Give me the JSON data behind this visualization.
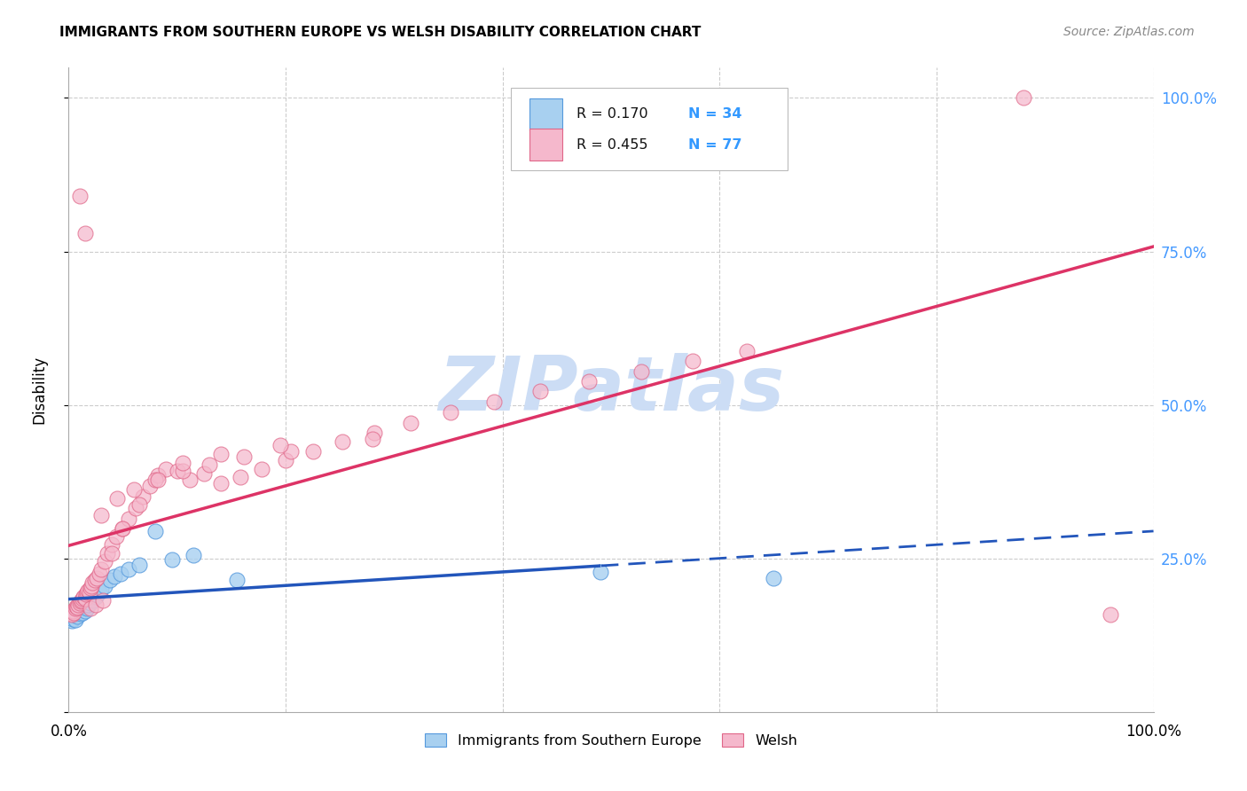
{
  "title": "IMMIGRANTS FROM SOUTHERN EUROPE VS WELSH DISABILITY CORRELATION CHART",
  "source": "Source: ZipAtlas.com",
  "ylabel": "Disability",
  "blue_label": "Immigrants from Southern Europe",
  "pink_label": "Welsh",
  "blue_r": "0.170",
  "blue_n": "34",
  "pink_r": "0.455",
  "pink_n": "77",
  "blue_dot_color": "#a8d0f0",
  "blue_edge_color": "#5599dd",
  "blue_line_color": "#2255bb",
  "pink_dot_color": "#f5b8cc",
  "pink_edge_color": "#e06688",
  "pink_line_color": "#dd3366",
  "r_text_color": "#111111",
  "n_text_color": "#3399ff",
  "watermark_color": "#ddeeff",
  "bg_color": "#ffffff",
  "grid_color": "#cccccc",
  "right_tick_color": "#4499ff",
  "blue_x": [
    0.002,
    0.003,
    0.004,
    0.005,
    0.006,
    0.007,
    0.008,
    0.009,
    0.01,
    0.011,
    0.012,
    0.013,
    0.014,
    0.015,
    0.016,
    0.017,
    0.018,
    0.02,
    0.022,
    0.025,
    0.028,
    0.03,
    0.033,
    0.038,
    0.042,
    0.048,
    0.055,
    0.065,
    0.08,
    0.095,
    0.115,
    0.155,
    0.49,
    0.65
  ],
  "blue_y": [
    0.155,
    0.148,
    0.152,
    0.158,
    0.15,
    0.16,
    0.155,
    0.163,
    0.165,
    0.16,
    0.168,
    0.162,
    0.17,
    0.165,
    0.172,
    0.168,
    0.175,
    0.178,
    0.182,
    0.188,
    0.195,
    0.2,
    0.205,
    0.215,
    0.22,
    0.225,
    0.232,
    0.24,
    0.295,
    0.248,
    0.255,
    0.215,
    0.228,
    0.218
  ],
  "pink_x": [
    0.002,
    0.003,
    0.004,
    0.005,
    0.006,
    0.007,
    0.008,
    0.009,
    0.01,
    0.011,
    0.012,
    0.013,
    0.014,
    0.015,
    0.016,
    0.017,
    0.018,
    0.019,
    0.02,
    0.021,
    0.022,
    0.024,
    0.026,
    0.028,
    0.03,
    0.033,
    0.036,
    0.04,
    0.044,
    0.05,
    0.055,
    0.062,
    0.068,
    0.075,
    0.082,
    0.09,
    0.1,
    0.112,
    0.125,
    0.14,
    0.158,
    0.178,
    0.2,
    0.225,
    0.252,
    0.282,
    0.315,
    0.352,
    0.392,
    0.435,
    0.48,
    0.528,
    0.575,
    0.625,
    0.03,
    0.045,
    0.06,
    0.08,
    0.105,
    0.13,
    0.162,
    0.205,
    0.01,
    0.015,
    0.02,
    0.025,
    0.032,
    0.04,
    0.05,
    0.065,
    0.082,
    0.105,
    0.14,
    0.195,
    0.28,
    0.88,
    0.96
  ],
  "pink_y": [
    0.16,
    0.158,
    0.165,
    0.162,
    0.168,
    0.172,
    0.17,
    0.175,
    0.178,
    0.18,
    0.182,
    0.185,
    0.188,
    0.185,
    0.192,
    0.195,
    0.198,
    0.195,
    0.202,
    0.205,
    0.21,
    0.215,
    0.218,
    0.225,
    0.232,
    0.245,
    0.258,
    0.272,
    0.285,
    0.298,
    0.315,
    0.332,
    0.35,
    0.368,
    0.385,
    0.395,
    0.392,
    0.378,
    0.388,
    0.372,
    0.382,
    0.395,
    0.41,
    0.425,
    0.44,
    0.455,
    0.47,
    0.488,
    0.505,
    0.522,
    0.538,
    0.555,
    0.572,
    0.588,
    0.32,
    0.348,
    0.362,
    0.378,
    0.392,
    0.402,
    0.415,
    0.425,
    0.84,
    0.78,
    0.168,
    0.175,
    0.182,
    0.258,
    0.298,
    0.338,
    0.378,
    0.405,
    0.42,
    0.435,
    0.445,
    1.0,
    0.158
  ]
}
